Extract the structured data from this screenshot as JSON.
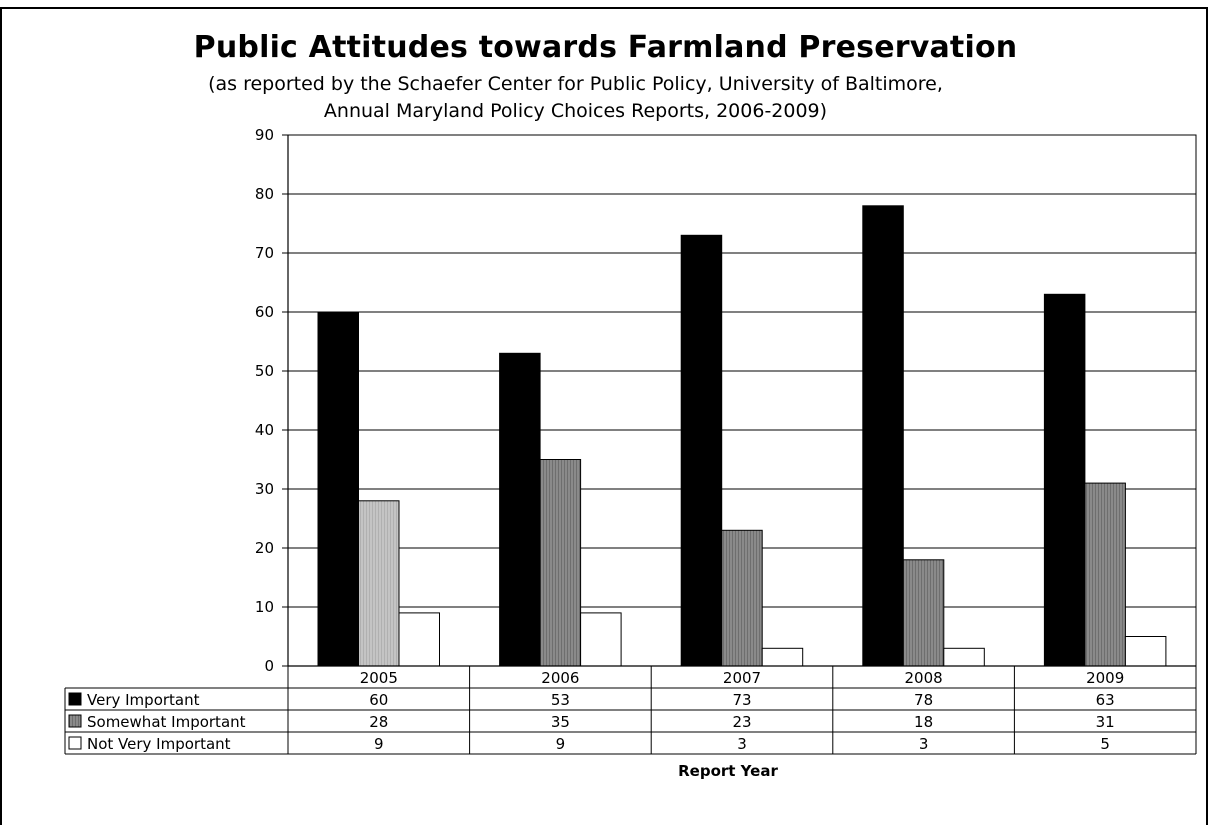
{
  "chart_data": {
    "type": "bar",
    "title": "Public Attitudes towards Farmland Preservation",
    "subtitle_line1": "(as reported by the Schaefer Center for Public Policy, University of Baltimore,",
    "subtitle_line2": "Annual Maryland Policy Choices Reports, 2006-2009)",
    "xlabel": "Report Year",
    "ylabel": "",
    "ylim": [
      0,
      90
    ],
    "yticks": [
      0,
      10,
      20,
      30,
      40,
      50,
      60,
      70,
      80,
      90
    ],
    "grid": true,
    "categories": [
      "2005",
      "2006",
      "2007",
      "2008",
      "2009"
    ],
    "series": [
      {
        "name": "Very Important",
        "values": [
          60,
          53,
          73,
          78,
          63
        ],
        "color": "#000000"
      },
      {
        "name": "Somewhat Important",
        "values": [
          28,
          35,
          23,
          18,
          31
        ],
        "color": "#808080"
      },
      {
        "name": "Not Very Important",
        "values": [
          9,
          9,
          3,
          3,
          5
        ],
        "color": "#ffffff"
      }
    ],
    "highlight_color": "#c0c0c0",
    "legend": "data table"
  }
}
